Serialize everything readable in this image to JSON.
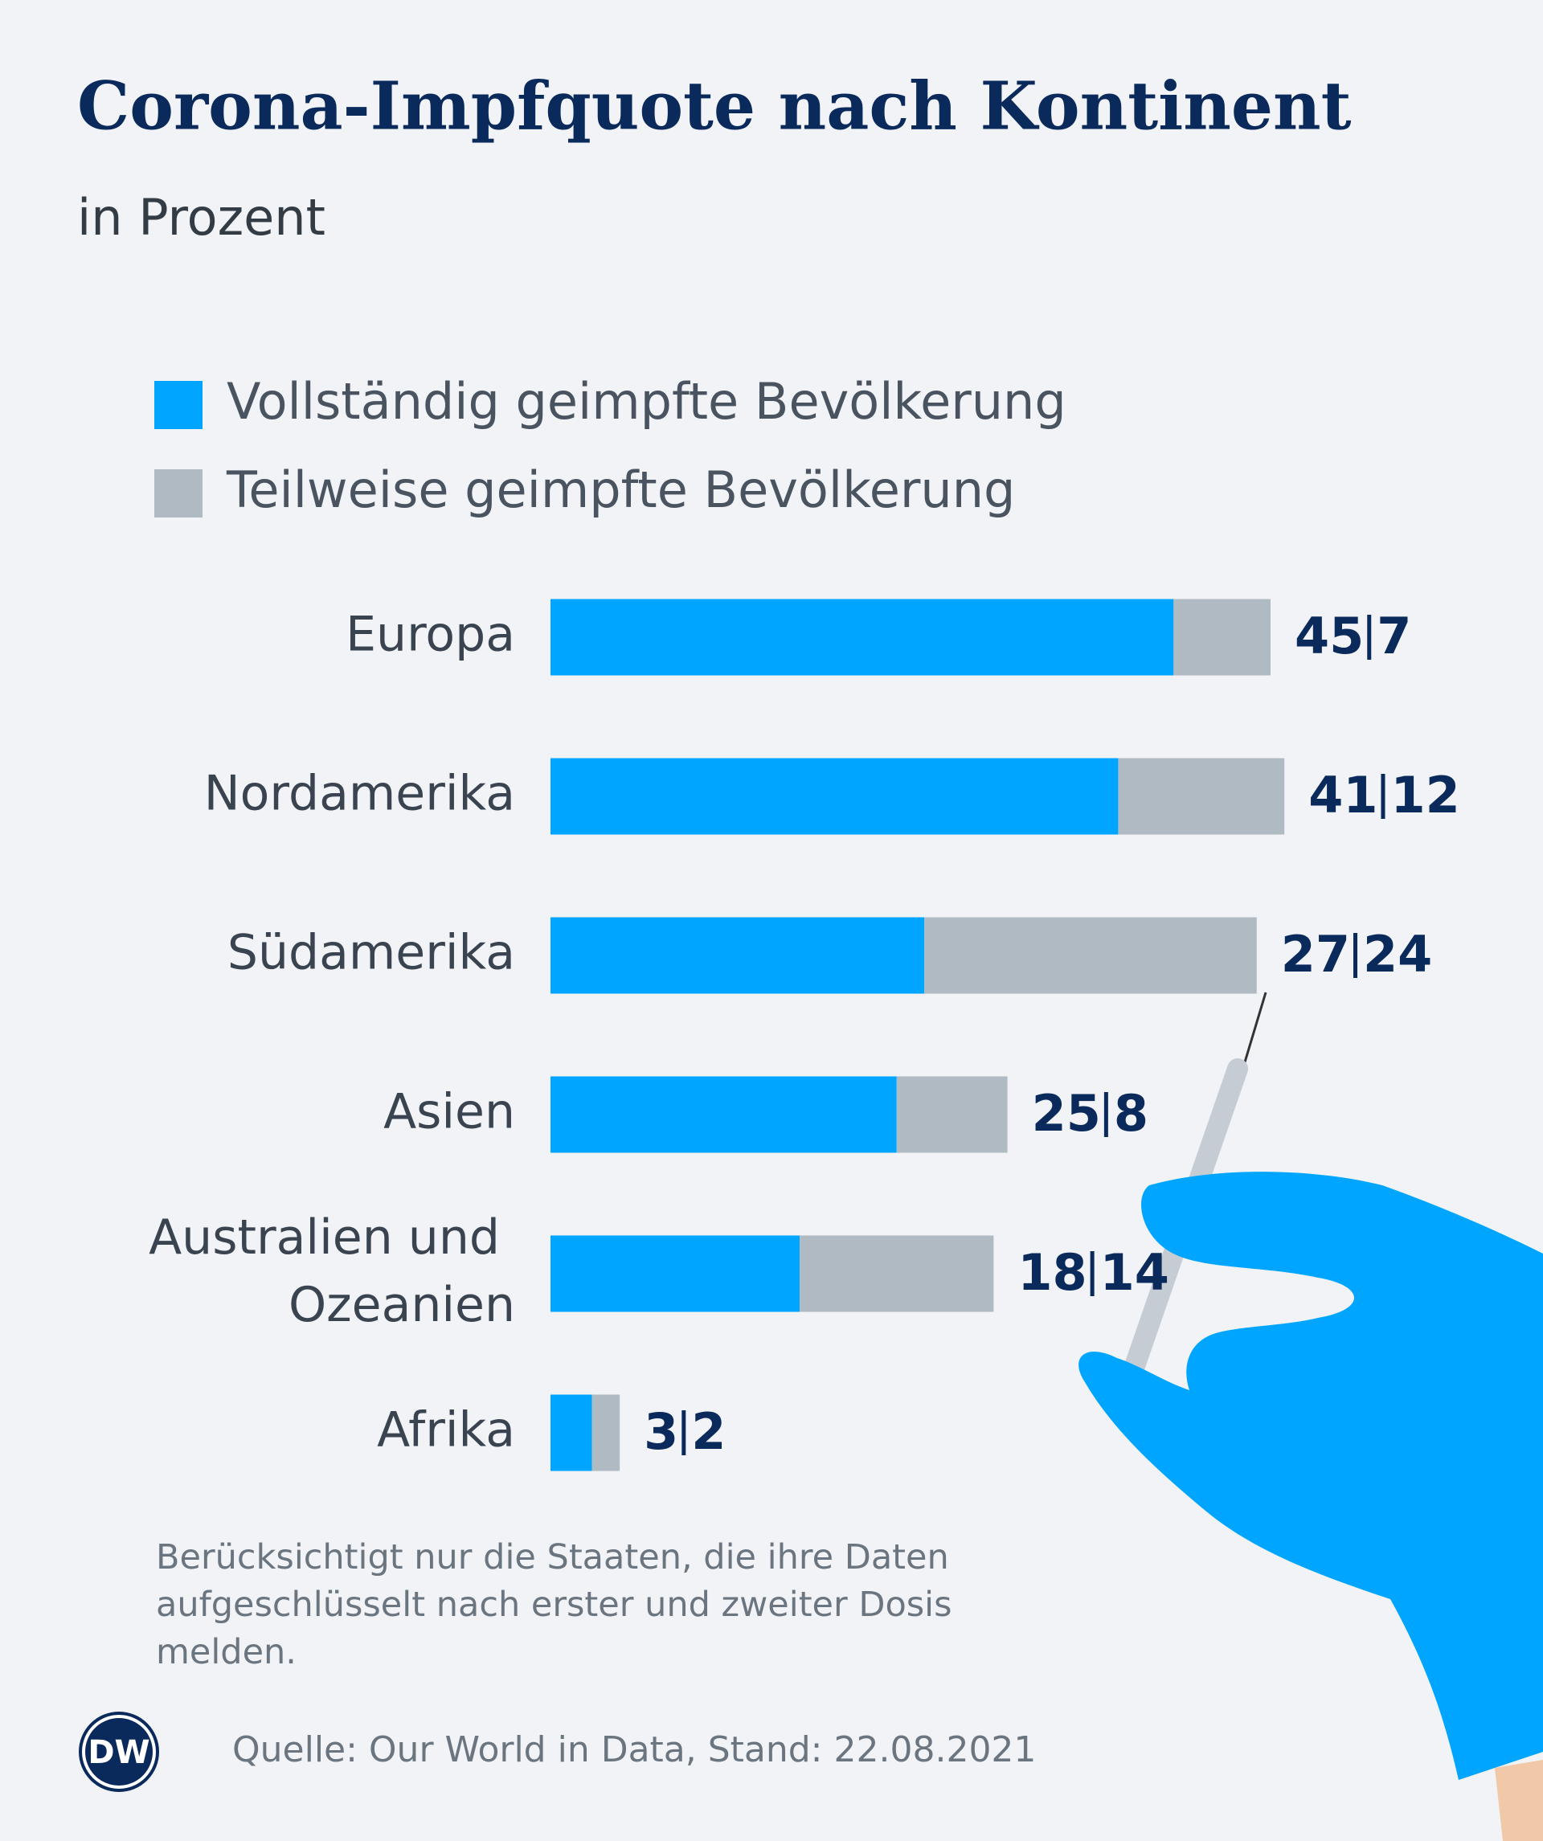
{
  "chart_data": {
    "type": "bar",
    "orientation": "horizontal",
    "stacked": true,
    "title": "Corona-Impfquote nach Kontinent",
    "subtitle": "in Prozent",
    "categories": [
      "Europa",
      "Nordamerika",
      "Südamerika",
      "Asien",
      "Australien und Ozeanien",
      "Afrika"
    ],
    "series": [
      {
        "name": "Vollständig geimpfte Bevölkerung",
        "color": "#00a5ff",
        "values": [
          45,
          41,
          27,
          25,
          18,
          3
        ]
      },
      {
        "name": "Teilweise geimpfte Bevölkerung",
        "color": "#b0bac3",
        "values": [
          7,
          12,
          24,
          8,
          14,
          2
        ]
      }
    ],
    "note": "Berücksichtigt nur die Staaten, die ihre Daten aufgeschlüsselt nach erster und zweiter Dosis melden.",
    "source": "Quelle: Our World in Data, Stand: 22.08.2021",
    "logo": "DW"
  }
}
